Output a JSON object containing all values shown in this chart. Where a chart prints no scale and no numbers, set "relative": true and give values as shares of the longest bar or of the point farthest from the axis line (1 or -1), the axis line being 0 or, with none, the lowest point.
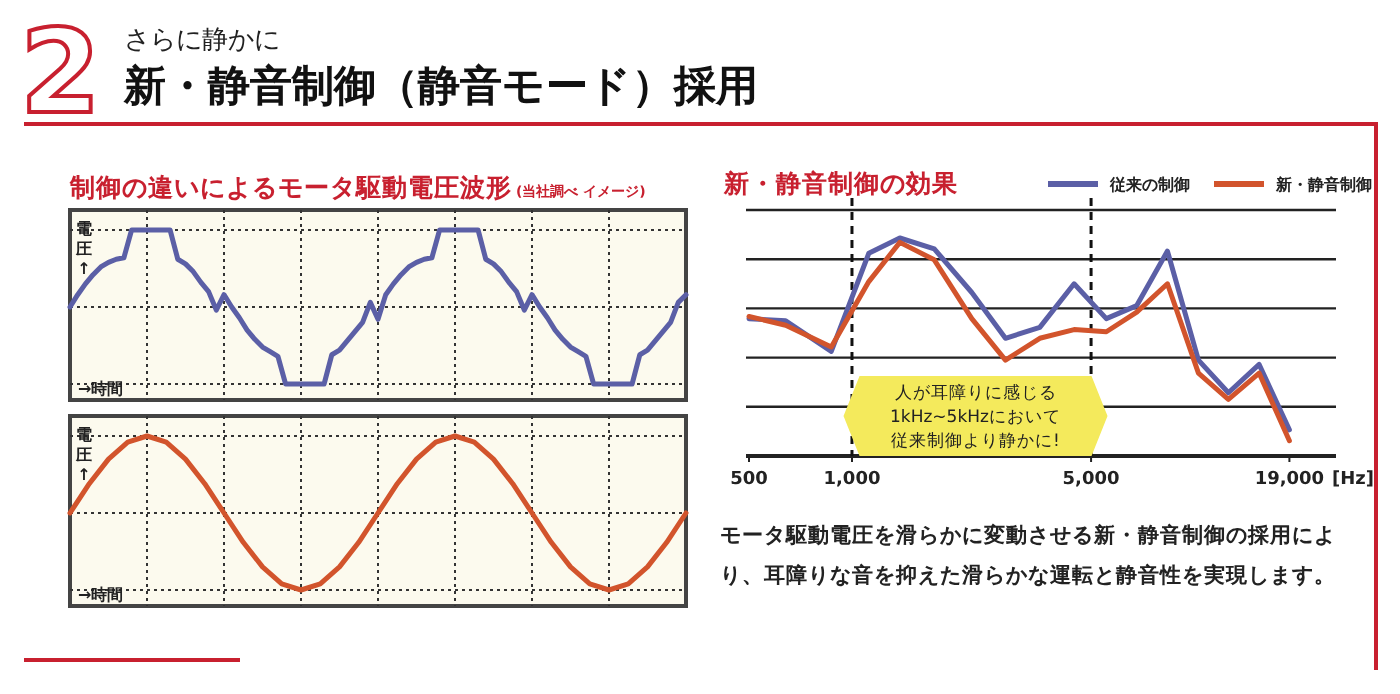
{
  "chart_data": [
    {
      "type": "other",
      "title": "新・静音制御（静音モード）採用",
      "subtitle": "さらに静かに",
      "annotations": [
        "2"
      ]
    },
    {
      "type": "line",
      "title": "制御の違いによるモータ駆動電圧波形",
      "subtitle": "(当社調べ イメージ)",
      "ylabel": "電圧↑",
      "xlabel": "→時間",
      "relative": true,
      "grid": true,
      "categories": [
        null,
        null,
        null,
        null,
        null,
        null,
        null,
        null,
        null,
        null,
        null,
        null,
        null,
        null,
        null,
        null,
        null,
        null,
        null,
        null,
        null,
        null,
        null,
        null,
        null,
        null,
        null,
        null,
        null,
        null,
        null,
        null,
        null,
        null,
        null,
        null,
        null,
        null,
        null,
        null,
        null,
        null,
        null,
        null,
        null,
        null,
        null,
        null,
        null,
        null,
        null,
        null,
        null,
        null,
        null,
        null,
        null,
        null,
        null,
        null,
        null,
        null,
        null,
        null,
        null,
        null,
        null,
        null,
        null,
        null,
        null,
        null,
        null,
        null,
        null,
        null,
        null,
        null,
        null,
        null,
        null
      ],
      "series": [
        {
          "color": "#5b5fa6",
          "values": [
            0.5,
            0.58,
            0.65,
            0.71,
            0.76,
            0.79,
            0.81,
            0.82,
            1,
            1,
            1,
            1,
            1,
            1,
            0.81,
            0.78,
            0.73,
            0.66,
            0.6,
            0.48,
            0.58,
            0.5,
            0.43,
            0.35,
            0.29,
            0.24,
            0.21,
            0.18,
            0,
            0,
            0,
            0,
            0,
            0,
            0.19,
            0.22,
            0.28,
            0.34,
            0.4,
            0.53,
            0.42,
            0.58,
            0.65,
            0.71,
            0.76,
            0.79,
            0.81,
            0.82,
            1,
            1,
            1,
            1,
            1,
            1,
            0.81,
            0.78,
            0.73,
            0.66,
            0.6,
            0.48,
            0.58,
            0.5,
            0.43,
            0.35,
            0.29,
            0.24,
            0.21,
            0.18,
            0,
            0,
            0,
            0,
            0,
            0,
            0.19,
            0.22,
            0.28,
            0.34,
            0.4,
            0.53,
            0.58
          ]
        }
      ]
    },
    {
      "type": "line",
      "ylabel": "電圧↑",
      "xlabel": "→時間",
      "relative": true,
      "grid": true,
      "categories": [
        null,
        null,
        null,
        null,
        null,
        null,
        null,
        null,
        null,
        null,
        null,
        null,
        null,
        null,
        null,
        null,
        null,
        null,
        null,
        null,
        null,
        null,
        null,
        null,
        null,
        null,
        null,
        null,
        null,
        null,
        null,
        null,
        null
      ],
      "series": [
        {
          "color": "#d2542c",
          "values": [
            0.5,
            0.69,
            0.85,
            0.96,
            1,
            0.96,
            0.85,
            0.69,
            0.5,
            0.31,
            0.15,
            0.04,
            0,
            0.04,
            0.15,
            0.31,
            0.5,
            0.69,
            0.85,
            0.96,
            1,
            0.96,
            0.85,
            0.69,
            0.5,
            0.31,
            0.15,
            0.04,
            0,
            0.04,
            0.15,
            0.31,
            0.5
          ]
        }
      ]
    },
    {
      "type": "line",
      "title": "新・静音制御の効果",
      "xlabel": "[Hz]",
      "relative": true,
      "log": "x",
      "grid": "y",
      "legend": "top right",
      "tick_labels": "x",
      "xlim": [
        490,
        26000
      ],
      "xticks": [
        500,
        {
          "value": 1000,
          "label": "1,000"
        },
        {
          "value": 5000,
          "label": "5,000"
        },
        {
          "value": 19000,
          "label": "19,000"
        }
      ],
      "ref_lines": [
        {
          "axis": "x",
          "value": 1000,
          "line_style": "dashed"
        },
        {
          "axis": "x",
          "value": 5000,
          "line_style": "dashed"
        }
      ],
      "series": [
        {
          "name": "従来の制御",
          "color": "#5b5fa6",
          "x": [
            500,
            640,
            870,
            1120,
            1380,
            1740,
            2240,
            2810,
            3540,
            4460,
            5540,
            6800,
            8360,
            10300,
            12600,
            15500,
            19000
          ],
          "values": [
            0.63,
            0.62,
            0.48,
            0.93,
            1,
            0.95,
            0.75,
            0.54,
            0.59,
            0.79,
            0.63,
            0.69,
            0.94,
            0.44,
            0.29,
            0.42,
            0.12
          ]
        },
        {
          "name": "新・静音制御",
          "color": "#d2542c",
          "x": [
            500,
            640,
            870,
            1120,
            1380,
            1740,
            2240,
            2810,
            3540,
            4460,
            5540,
            6800,
            8360,
            10300,
            12600,
            15500,
            19000
          ],
          "values": [
            0.64,
            0.6,
            0.5,
            0.8,
            0.98,
            0.9,
            0.63,
            0.44,
            0.54,
            0.58,
            0.57,
            0.66,
            0.79,
            0.38,
            0.26,
            0.38,
            0.07
          ]
        }
      ],
      "annotations": [
        "人が耳障りに感じる",
        "1kHz~5kHzにおいて",
        "従来制御より静かに!",
        "モータ駆動電圧を滑らかに変動させる新・静音制御の採用により、耳障りな音を抑えた滑らかな運転と静音性を実現します。"
      ]
    }
  ]
}
